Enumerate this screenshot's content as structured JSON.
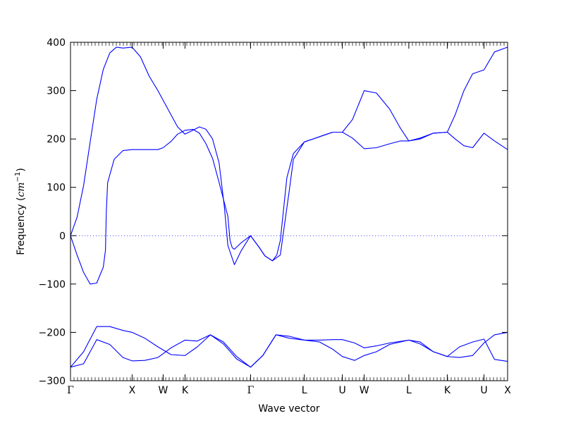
{
  "chart_data": {
    "type": "line",
    "title": "",
    "xlabel": "Wave vector",
    "ylabel": "Frequency ($cm^{-1}$)",
    "ylabel_parts": {
      "main": "Frequency (",
      "unit_base": "cm",
      "unit_exp": "−1",
      "close": ")"
    },
    "ylim": [
      -300,
      400
    ],
    "xlim": [
      0,
      10
    ],
    "yticks": [
      -300,
      -200,
      -100,
      0,
      100,
      200,
      300,
      400
    ],
    "xticks": [
      {
        "x": 0.0,
        "label": "Γ"
      },
      {
        "x": 1.41,
        "label": "X"
      },
      {
        "x": 2.12,
        "label": "W"
      },
      {
        "x": 2.62,
        "label": "K"
      },
      {
        "x": 4.12,
        "label": "Γ"
      },
      {
        "x": 5.35,
        "label": "L"
      },
      {
        "x": 6.22,
        "label": "U"
      },
      {
        "x": 6.72,
        "label": "W"
      },
      {
        "x": 7.74,
        "label": "L"
      },
      {
        "x": 8.62,
        "label": "K"
      },
      {
        "x": 9.46,
        "label": "U"
      },
      {
        "x": 10.0,
        "label": "X"
      }
    ],
    "zero_line": {
      "y": 0,
      "style": "dotted"
    },
    "line_color": "#0000ff",
    "series": [
      {
        "x": [
          0,
          0.15,
          0.3,
          0.45,
          0.6,
          0.75,
          0.9,
          1.05,
          1.2,
          1.41,
          1.6,
          1.8,
          2.0,
          2.12,
          2.3,
          2.45,
          2.62,
          2.8,
          2.95,
          3.1,
          3.25,
          3.4,
          3.52,
          3.6,
          3.75,
          3.9,
          4.12,
          4.3,
          4.45,
          4.62,
          4.72,
          4.8,
          4.95,
          5.1,
          5.35,
          5.55,
          5.8,
          6.0,
          6.22,
          6.45,
          6.72,
          7.0,
          7.3,
          7.55,
          7.74,
          8.0,
          8.3,
          8.62,
          8.8,
          9.0,
          9.2,
          9.46,
          9.7,
          10.0
        ],
        "y": [
          0,
          38,
          104,
          194,
          282,
          344,
          378,
          390,
          388,
          390,
          370,
          330,
          300,
          280,
          250,
          225,
          210,
          218,
          225,
          220,
          200,
          150,
          60,
          -20,
          -60,
          -32,
          0,
          -22,
          -42,
          -52,
          -40,
          -10,
          120,
          170,
          194,
          200,
          208,
          214,
          214,
          240,
          300,
          295,
          262,
          222,
          196,
          200,
          212,
          214,
          250,
          300,
          335,
          343,
          380,
          390
        ]
      },
      {
        "x": [
          0,
          0.15,
          0.3,
          0.45,
          0.6,
          0.75,
          0.8,
          0.82,
          0.85,
          1.0,
          1.2,
          1.41,
          1.6,
          1.8,
          2.0,
          2.12,
          2.3,
          2.45,
          2.62,
          2.8,
          2.95,
          3.1,
          3.25,
          3.4,
          3.6,
          3.65,
          3.7,
          3.75,
          3.9,
          4.12,
          4.3,
          4.45,
          4.62,
          4.8,
          5.0,
          5.1,
          5.35,
          5.55,
          5.8,
          6.0,
          6.22,
          6.45,
          6.72,
          7.0,
          7.3,
          7.55,
          7.74,
          8.0,
          8.3,
          8.62,
          8.8,
          9.0,
          9.2,
          9.46,
          9.7,
          10.0
        ],
        "y": [
          0,
          -40,
          -76,
          -100,
          -98,
          -65,
          -30,
          50,
          110,
          158,
          176,
          178,
          178,
          178,
          178,
          182,
          195,
          210,
          218,
          220,
          212,
          190,
          160,
          110,
          40,
          -10,
          -25,
          -28,
          -15,
          0,
          -22,
          -42,
          -52,
          -40,
          90,
          158,
          194,
          200,
          208,
          214,
          214,
          202,
          180,
          182,
          190,
          196,
          196,
          202,
          212,
          214,
          200,
          186,
          182,
          212,
          196,
          178
        ]
      },
      {
        "x": [
          0,
          0.3,
          0.6,
          0.9,
          1.2,
          1.41,
          1.7,
          2.0,
          2.3,
          2.62,
          2.9,
          3.2,
          3.5,
          3.8,
          4.12,
          4.4,
          4.7,
          5.0,
          5.35,
          5.7,
          6.0,
          6.22,
          6.5,
          6.72,
          7.0,
          7.3,
          7.74,
          8.0,
          8.3,
          8.62,
          8.9,
          9.2,
          9.46,
          9.7,
          10.0
        ],
        "y": [
          -272,
          -265,
          -215,
          -225,
          -252,
          -259,
          -258,
          -252,
          -232,
          -216,
          -218,
          -205,
          -220,
          -250,
          -272,
          -248,
          -205,
          -208,
          -216,
          -220,
          -235,
          -250,
          -258,
          -248,
          -240,
          -225,
          -216,
          -220,
          -240,
          -250,
          -252,
          -248,
          -222,
          -205,
          -200
        ]
      },
      {
        "x": [
          0,
          0.3,
          0.6,
          0.9,
          1.2,
          1.41,
          1.7,
          2.0,
          2.3,
          2.62,
          2.9,
          3.2,
          3.5,
          3.8,
          4.12,
          4.4,
          4.7,
          5.0,
          5.35,
          5.7,
          6.0,
          6.22,
          6.5,
          6.72,
          7.0,
          7.3,
          7.74,
          8.0,
          8.3,
          8.62,
          8.9,
          9.2,
          9.46,
          9.7,
          10.0
        ],
        "y": [
          -272,
          -240,
          -188,
          -188,
          -196,
          -200,
          -212,
          -230,
          -246,
          -248,
          -230,
          -205,
          -224,
          -255,
          -272,
          -248,
          -205,
          -212,
          -216,
          -216,
          -215,
          -215,
          -222,
          -232,
          -228,
          -222,
          -216,
          -224,
          -240,
          -250,
          -230,
          -220,
          -214,
          -256,
          -260
        ]
      }
    ]
  }
}
